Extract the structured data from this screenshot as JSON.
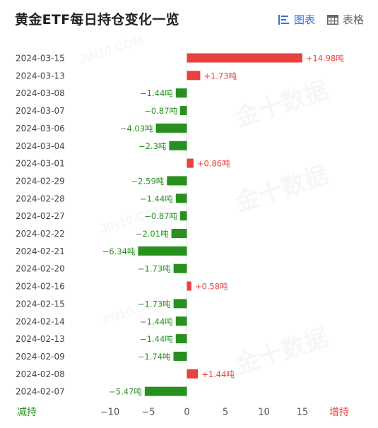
{
  "header": {
    "title": "黄金ETF每日持仓变化一览",
    "tabs": [
      {
        "label": "图表",
        "icon": "bar-list-icon",
        "active": true
      },
      {
        "label": "表格",
        "icon": "table-icon",
        "active": false
      }
    ]
  },
  "colors": {
    "increase": "#e8413e",
    "decrease": "#27901f",
    "accent": "#3b6fd8"
  },
  "chart_data": {
    "type": "bar",
    "orientation": "horizontal",
    "categories": [
      "2024-03-15",
      "2024-03-13",
      "2024-03-08",
      "2024-03-07",
      "2024-03-06",
      "2024-03-04",
      "2024-03-01",
      "2024-02-29",
      "2024-02-28",
      "2024-02-27",
      "2024-02-22",
      "2024-02-21",
      "2024-02-20",
      "2024-02-16",
      "2024-02-15",
      "2024-02-14",
      "2024-02-13",
      "2024-02-09",
      "2024-02-08",
      "2024-02-07"
    ],
    "values": [
      14.98,
      1.73,
      -1.44,
      -0.87,
      -4.03,
      -2.3,
      0.86,
      -2.59,
      -1.44,
      -0.87,
      -2.01,
      -6.34,
      -1.73,
      0.58,
      -1.73,
      -1.44,
      -1.44,
      -1.74,
      1.44,
      -5.47
    ],
    "data_labels": [
      "+14.98吨",
      "+1.73吨",
      "−1.44吨",
      "−0.87吨",
      "−4.03吨",
      "−2.3吨",
      "+0.86吨",
      "−2.59吨",
      "−1.44吨",
      "−0.87吨",
      "−2.01吨",
      "−6.34吨",
      "−1.73吨",
      "+0.58吨",
      "−1.73吨",
      "−1.44吨",
      "−1.44吨",
      "−1.74吨",
      "+1.44吨",
      "−5.47吨"
    ],
    "xlim": [
      -15,
      15
    ],
    "xticks": [
      -10,
      -5,
      0,
      5,
      10,
      15
    ],
    "xtick_labels": [
      "−10",
      "−5",
      "0",
      "5",
      "10",
      "15"
    ],
    "left_label": "减持",
    "right_label": "增持"
  },
  "watermark": {
    "cn": "金十数据",
    "en": "JIN10.COM"
  }
}
